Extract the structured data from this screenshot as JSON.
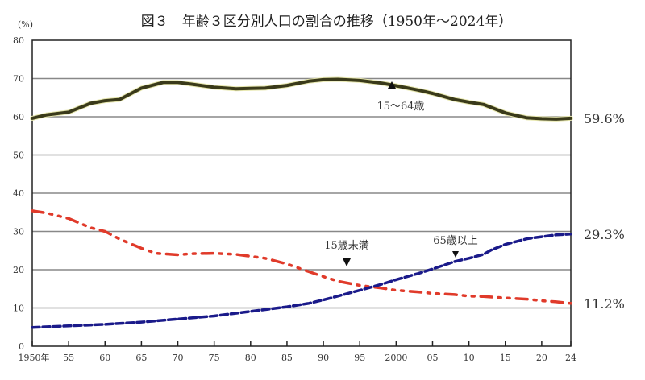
{
  "chart_data": {
    "type": "line",
    "title": "図３　年齢３区分別人口の割合の推移（1950年～2024年）",
    "ylabel": "(%)",
    "xlabel": "",
    "ylim": [
      0,
      80
    ],
    "xlim": [
      1950,
      2024
    ],
    "yticks": [
      0,
      10,
      20,
      30,
      40,
      50,
      60,
      70,
      80
    ],
    "xticks": [
      {
        "value": 1950,
        "label": "1950年"
      },
      {
        "value": 1955,
        "label": "55"
      },
      {
        "value": 1960,
        "label": "60"
      },
      {
        "value": 1965,
        "label": "65"
      },
      {
        "value": 1970,
        "label": "70"
      },
      {
        "value": 1975,
        "label": "75"
      },
      {
        "value": 1980,
        "label": "80"
      },
      {
        "value": 1985,
        "label": "85"
      },
      {
        "value": 1990,
        "label": "90"
      },
      {
        "value": 1995,
        "label": "95"
      },
      {
        "value": 2000,
        "label": "2000"
      },
      {
        "value": 2005,
        "label": "05"
      },
      {
        "value": 2010,
        "label": "10"
      },
      {
        "value": 2015,
        "label": "15"
      },
      {
        "value": 2020,
        "label": "20"
      },
      {
        "value": 2024,
        "label": "24"
      }
    ],
    "grid": true,
    "series": [
      {
        "name": "15～64歳",
        "color": "#3a3a1a",
        "style": "solid",
        "end_label": "59.6%",
        "x": [
          1950,
          1952,
          1955,
          1958,
          1960,
          1962,
          1965,
          1968,
          1970,
          1972,
          1975,
          1978,
          1980,
          1982,
          1985,
          1988,
          1990,
          1992,
          1995,
          1998,
          2000,
          2003,
          2005,
          2008,
          2010,
          2012,
          2015,
          2018,
          2020,
          2022,
          2024
        ],
        "y": [
          59.6,
          60.5,
          61.2,
          63.5,
          64.2,
          64.5,
          67.5,
          69.0,
          69.0,
          68.5,
          67.7,
          67.3,
          67.4,
          67.5,
          68.2,
          69.3,
          69.7,
          69.8,
          69.5,
          68.8,
          68.1,
          67.0,
          66.1,
          64.5,
          63.8,
          63.2,
          61.0,
          59.7,
          59.5,
          59.4,
          59.6
        ]
      },
      {
        "name": "15歳未満",
        "color": "#e03a2a",
        "style": "dashdotdot",
        "end_label": "11.2%",
        "x": [
          1950,
          1952,
          1955,
          1958,
          1960,
          1962,
          1965,
          1967,
          1970,
          1972,
          1975,
          1978,
          1980,
          1982,
          1985,
          1988,
          1990,
          1992,
          1995,
          1998,
          2000,
          2003,
          2005,
          2008,
          2010,
          2012,
          2015,
          2018,
          2020,
          2022,
          2024
        ],
        "y": [
          35.4,
          34.8,
          33.4,
          31.0,
          30.0,
          28.0,
          25.6,
          24.3,
          23.9,
          24.2,
          24.3,
          24.0,
          23.5,
          23.0,
          21.5,
          19.5,
          18.2,
          17.0,
          15.9,
          15.2,
          14.6,
          14.2,
          13.8,
          13.5,
          13.1,
          13.0,
          12.6,
          12.3,
          11.9,
          11.6,
          11.2
        ]
      },
      {
        "name": "65歳以上",
        "color": "#1a1a8a",
        "style": "dashed",
        "end_label": "29.3%",
        "x": [
          1950,
          1955,
          1960,
          1965,
          1970,
          1975,
          1980,
          1985,
          1988,
          1990,
          1992,
          1995,
          1998,
          2000,
          2003,
          2005,
          2008,
          2010,
          2012,
          2013,
          2015,
          2018,
          2020,
          2022,
          2024
        ],
        "y": [
          4.9,
          5.3,
          5.7,
          6.3,
          7.1,
          7.9,
          9.1,
          10.3,
          11.2,
          12.1,
          13.1,
          14.6,
          16.2,
          17.4,
          19.0,
          20.2,
          22.1,
          23.0,
          24.0,
          25.1,
          26.6,
          28.1,
          28.6,
          29.1,
          29.3
        ]
      }
    ]
  }
}
